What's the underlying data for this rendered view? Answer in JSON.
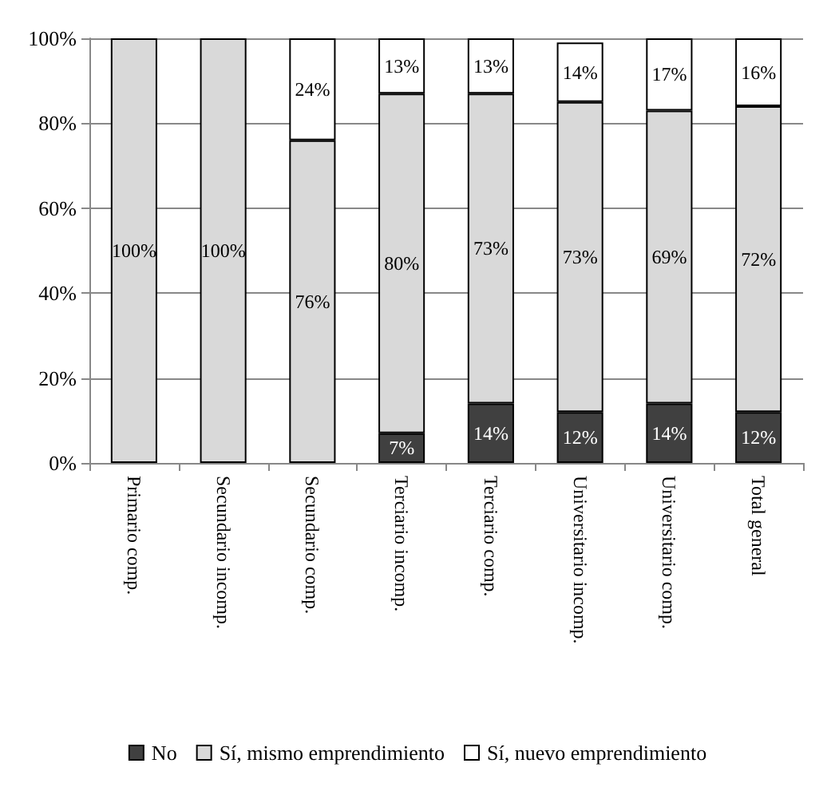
{
  "chart_data": {
    "type": "bar",
    "stacked": true,
    "categories": [
      "Primario comp.",
      "Secundario incomp.",
      "Secundario comp.",
      "Terciario incomp.",
      "Terciario comp.",
      "Universitario incomp.",
      "Universitario comp.",
      "Total general"
    ],
    "series": [
      {
        "name": "No",
        "color": "#404040",
        "values": [
          0,
          0,
          0,
          7,
          14,
          12,
          14,
          12
        ],
        "value_labels": [
          null,
          null,
          null,
          "7%",
          "14%",
          "12%",
          "14%",
          "12%"
        ]
      },
      {
        "name": "Sí, mismo emprendimiento",
        "color": "#d9d9d9",
        "values": [
          100,
          100,
          76,
          80,
          73,
          73,
          69,
          72
        ],
        "value_labels": [
          "100%",
          "100%",
          "76%",
          "80%",
          "73%",
          "73%",
          "69%",
          "72%"
        ]
      },
      {
        "name": "Sí, nuevo emprendimiento",
        "color": "#ffffff",
        "values": [
          0,
          0,
          24,
          13,
          13,
          14,
          17,
          16
        ],
        "value_labels": [
          null,
          null,
          "24%",
          "13%",
          "13%",
          "14%",
          "17%",
          "16%"
        ]
      }
    ],
    "ylim": [
      0,
      100
    ],
    "yticks": [
      {
        "value": 0,
        "label": "0%"
      },
      {
        "value": 20,
        "label": "20%"
      },
      {
        "value": 40,
        "label": "40%"
      },
      {
        "value": 60,
        "label": "60%"
      },
      {
        "value": 80,
        "label": "80%"
      },
      {
        "value": 100,
        "label": "100%"
      }
    ],
    "grid": "y",
    "legend": "bottom"
  }
}
